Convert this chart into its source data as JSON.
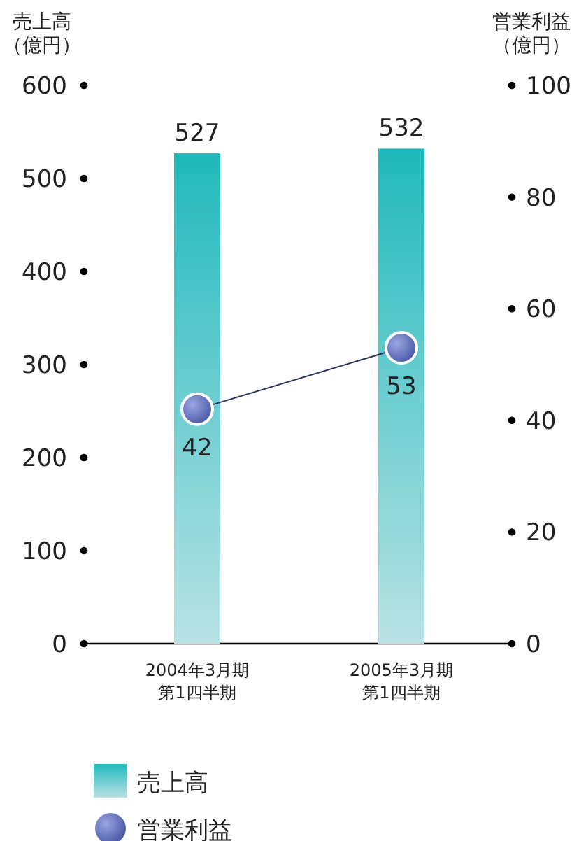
{
  "chart_data": {
    "type": "bar",
    "ylabel": "売上高（億円）",
    "y2label": "営業利益（億円）",
    "categories": [
      "2004年3月期第1四半期",
      "2005年3月期第1四半期"
    ],
    "series": [
      {
        "name": "売上高",
        "color": "#20b9bc",
        "values": [
          527,
          532
        ]
      },
      {
        "name": "営業利益",
        "type": "line",
        "axis": "y2",
        "color": "#2a2f5a",
        "values": [
          42,
          53
        ]
      }
    ],
    "ylim": [
      0,
      600
    ],
    "yticks": [
      0,
      100,
      200,
      300,
      400,
      500,
      600
    ],
    "y2lim": [
      0,
      100
    ],
    "y2ticks": [
      0,
      20,
      40,
      60,
      80,
      100
    ],
    "data_labels": true,
    "marker": "circle",
    "grid": false,
    "legend": "bottom"
  }
}
